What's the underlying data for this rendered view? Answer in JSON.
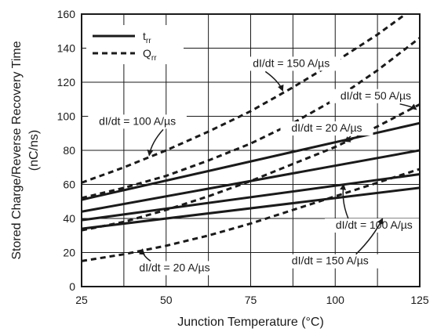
{
  "chart_data": {
    "type": "line",
    "xlabel": "Junction Temperature (°C)",
    "ylabel": "Stored Charge/Reverse Recovery Time",
    "ylabel_unit": "(nC/ns)",
    "xlim": [
      25,
      125
    ],
    "ylim": [
      0,
      160
    ],
    "xticks": [
      25,
      50,
      75,
      100,
      125
    ],
    "yticks": [
      0,
      20,
      40,
      60,
      80,
      100,
      120,
      140,
      160
    ],
    "grid": true,
    "legend_position": "top-left",
    "legend": [
      {
        "label": "t",
        "sub": "rr",
        "style": "solid"
      },
      {
        "label": "Q",
        "sub": "rr",
        "style": "dashed"
      }
    ],
    "series": [
      {
        "name": "trr dI/dt = 20 A/µs",
        "kind": "solid",
        "x": [
          25,
          125
        ],
        "y": [
          51,
          96
        ]
      },
      {
        "name": "trr dI/dt = 50 A/µs",
        "kind": "solid",
        "x": [
          25,
          125
        ],
        "y": [
          44,
          80
        ]
      },
      {
        "name": "trr dI/dt = 100 A/µs",
        "kind": "solid",
        "x": [
          25,
          125
        ],
        "y": [
          39,
          66
        ]
      },
      {
        "name": "trr dI/dt = 150 A/µs",
        "kind": "solid",
        "x": [
          25,
          125
        ],
        "y": [
          34,
          58
        ]
      },
      {
        "name": "Qrr dI/dt = 150 A/µs",
        "kind": "dashed",
        "x": [
          25,
          37.5,
          50,
          62.5,
          75,
          87.5,
          100,
          112.5,
          125
        ],
        "y": [
          61,
          70,
          80,
          91,
          103,
          117,
          132,
          148,
          166
        ]
      },
      {
        "name": "Qrr dI/dt = 100 A/µs",
        "kind": "dashed",
        "x": [
          25,
          37.5,
          50,
          62.5,
          75,
          87.5,
          100,
          112.5,
          125
        ],
        "y": [
          52,
          58,
          65,
          74,
          84,
          96,
          110,
          127,
          146
        ]
      },
      {
        "name": "Qrr dI/dt = 50 A/µs",
        "kind": "dashed",
        "x": [
          25,
          37.5,
          50,
          62.5,
          75,
          87.5,
          100,
          112.5,
          125
        ],
        "y": [
          33,
          38,
          45,
          53,
          62,
          72,
          82,
          94,
          107
        ]
      },
      {
        "name": "Qrr dI/dt = 20 A/µs",
        "kind": "dashed",
        "x": [
          25,
          37.5,
          50,
          62.5,
          75,
          87.5,
          100,
          112.5,
          125
        ],
        "y": [
          15,
          19,
          24,
          30,
          37,
          45,
          53,
          61,
          69
        ]
      }
    ],
    "annotations": [
      {
        "text": "dI/dt = 150 A/µs",
        "x": 87,
        "y": 129,
        "anchor": "middle",
        "arrow_to": [
          84.5,
          115
        ]
      },
      {
        "text": "dI/dt = 50 A/µs",
        "x": 112,
        "y": 110,
        "anchor": "middle",
        "arrow_to": [
          124,
          104
        ]
      },
      {
        "text": "dI/dt = 100 A/µs",
        "x": 41.5,
        "y": 95,
        "anchor": "middle",
        "arrow_to": [
          45,
          77
        ]
      },
      {
        "text": "dI/dt = 20 A/µs",
        "x": 97.5,
        "y": 91,
        "anchor": "middle",
        "arrow_to": [
          104.5,
          85
        ]
      },
      {
        "text": "dI/dt = 100 A/µs",
        "x": 111.5,
        "y": 34,
        "anchor": "middle",
        "arrow_to": [
          102.5,
          60
        ]
      },
      {
        "text": "dI/dt = 150 A/µs",
        "x": 98.5,
        "y": 13,
        "anchor": "middle",
        "arrow_to": [
          114,
          40
        ]
      },
      {
        "text": "dI/dt = 20 A/µs",
        "x": 52.5,
        "y": 9,
        "anchor": "middle",
        "arrow_to": [
          43,
          22
        ]
      }
    ]
  }
}
